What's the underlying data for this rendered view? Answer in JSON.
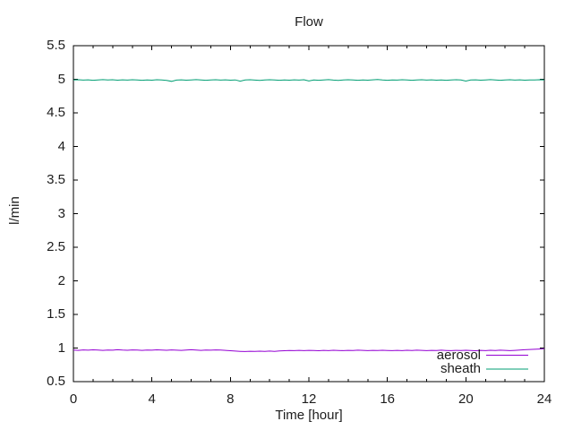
{
  "chart_data": {
    "type": "line",
    "title": "Flow",
    "xlabel": "Time [hour]",
    "ylabel": "l/min",
    "xlim": [
      0,
      24
    ],
    "ylim": [
      0.5,
      5.5
    ],
    "xticks": {
      "major": [
        0,
        4,
        8,
        12,
        16,
        20,
        24
      ],
      "minor_step": 1
    },
    "yticks": [
      0.5,
      1,
      1.5,
      2,
      2.5,
      3,
      3.5,
      4,
      4.5,
      5,
      5.5
    ],
    "grid": false,
    "legend_position": "inside-bottom-right",
    "background_color": "#ffffff",
    "axis_color": "#000000",
    "text_color": "#1c1c1c",
    "x": [
      0,
      0.25,
      0.5,
      0.75,
      1,
      1.25,
      1.5,
      1.75,
      2,
      2.25,
      2.5,
      2.75,
      3,
      3.25,
      3.5,
      3.75,
      4,
      4.25,
      4.5,
      4.75,
      5,
      5.25,
      5.5,
      5.75,
      6,
      6.25,
      6.5,
      6.75,
      7,
      7.25,
      7.5,
      7.75,
      8,
      8.25,
      8.5,
      8.75,
      9,
      9.25,
      9.5,
      9.75,
      10,
      10.25,
      10.5,
      10.75,
      11,
      11.25,
      11.5,
      11.75,
      12,
      12.25,
      12.5,
      12.75,
      13,
      13.25,
      13.5,
      13.75,
      14,
      14.25,
      14.5,
      14.75,
      15,
      15.25,
      15.5,
      15.75,
      16,
      16.25,
      16.5,
      16.75,
      17,
      17.25,
      17.5,
      17.75,
      18,
      18.25,
      18.5,
      18.75,
      19,
      19.25,
      19.5,
      19.75,
      20,
      20.25,
      20.5,
      20.75,
      21,
      21.25,
      21.5,
      21.75,
      22,
      22.25,
      22.5,
      22.75,
      23,
      23.25,
      23.5,
      23.75,
      24
    ],
    "series": [
      {
        "name": "aerosol",
        "color": "#9400d3",
        "values": [
          0.97,
          0.966,
          0.972,
          0.968,
          0.973,
          0.969,
          0.965,
          0.971,
          0.968,
          0.974,
          0.97,
          0.967,
          0.972,
          0.969,
          0.966,
          0.971,
          0.968,
          0.973,
          0.97,
          0.967,
          0.972,
          0.968,
          0.965,
          0.97,
          0.974,
          0.969,
          0.966,
          0.971,
          0.968,
          0.972,
          0.969,
          0.965,
          0.96,
          0.955,
          0.951,
          0.948,
          0.952,
          0.949,
          0.953,
          0.95,
          0.954,
          0.951,
          0.956,
          0.96,
          0.963,
          0.961,
          0.965,
          0.962,
          0.966,
          0.963,
          0.96,
          0.965,
          0.962,
          0.967,
          0.964,
          0.961,
          0.966,
          0.963,
          0.968,
          0.965,
          0.962,
          0.966,
          0.963,
          0.967,
          0.964,
          0.961,
          0.965,
          0.962,
          0.967,
          0.964,
          0.968,
          0.965,
          0.962,
          0.966,
          0.963,
          0.968,
          0.964,
          0.961,
          0.966,
          0.963,
          0.967,
          0.964,
          0.96,
          0.965,
          0.962,
          0.967,
          0.963,
          0.968,
          0.965,
          0.962,
          0.966,
          0.97,
          0.974,
          0.978,
          0.982,
          0.986,
          0.99
        ]
      },
      {
        "name": "sheath",
        "color": "#009e73",
        "values": [
          4.99,
          4.994,
          4.988,
          4.992,
          4.986,
          4.991,
          4.995,
          4.989,
          4.993,
          4.987,
          4.992,
          4.988,
          4.994,
          4.99,
          4.985,
          4.991,
          4.987,
          4.993,
          4.989,
          4.984,
          4.97,
          4.988,
          4.992,
          4.987,
          4.991,
          4.995,
          4.989,
          4.985,
          4.99,
          4.994,
          4.988,
          4.992,
          4.987,
          4.991,
          4.972,
          4.989,
          4.993,
          4.988,
          4.984,
          4.99,
          4.994,
          4.989,
          4.985,
          4.991,
          4.987,
          4.992,
          4.988,
          4.993,
          4.975,
          4.99,
          4.986,
          4.991,
          4.995,
          4.988,
          4.984,
          4.99,
          4.993,
          4.989,
          4.985,
          4.991,
          4.987,
          4.992,
          4.996,
          4.99,
          4.986,
          4.991,
          4.988,
          4.993,
          4.989,
          4.985,
          4.99,
          4.994,
          4.988,
          4.992,
          4.987,
          4.991,
          4.986,
          4.99,
          4.994,
          4.989,
          4.973,
          4.99,
          4.992,
          4.987,
          4.991,
          4.995,
          4.989,
          4.986,
          4.99,
          4.993,
          4.988,
          4.992,
          4.987,
          4.991,
          4.989,
          4.993,
          4.99
        ]
      }
    ]
  }
}
